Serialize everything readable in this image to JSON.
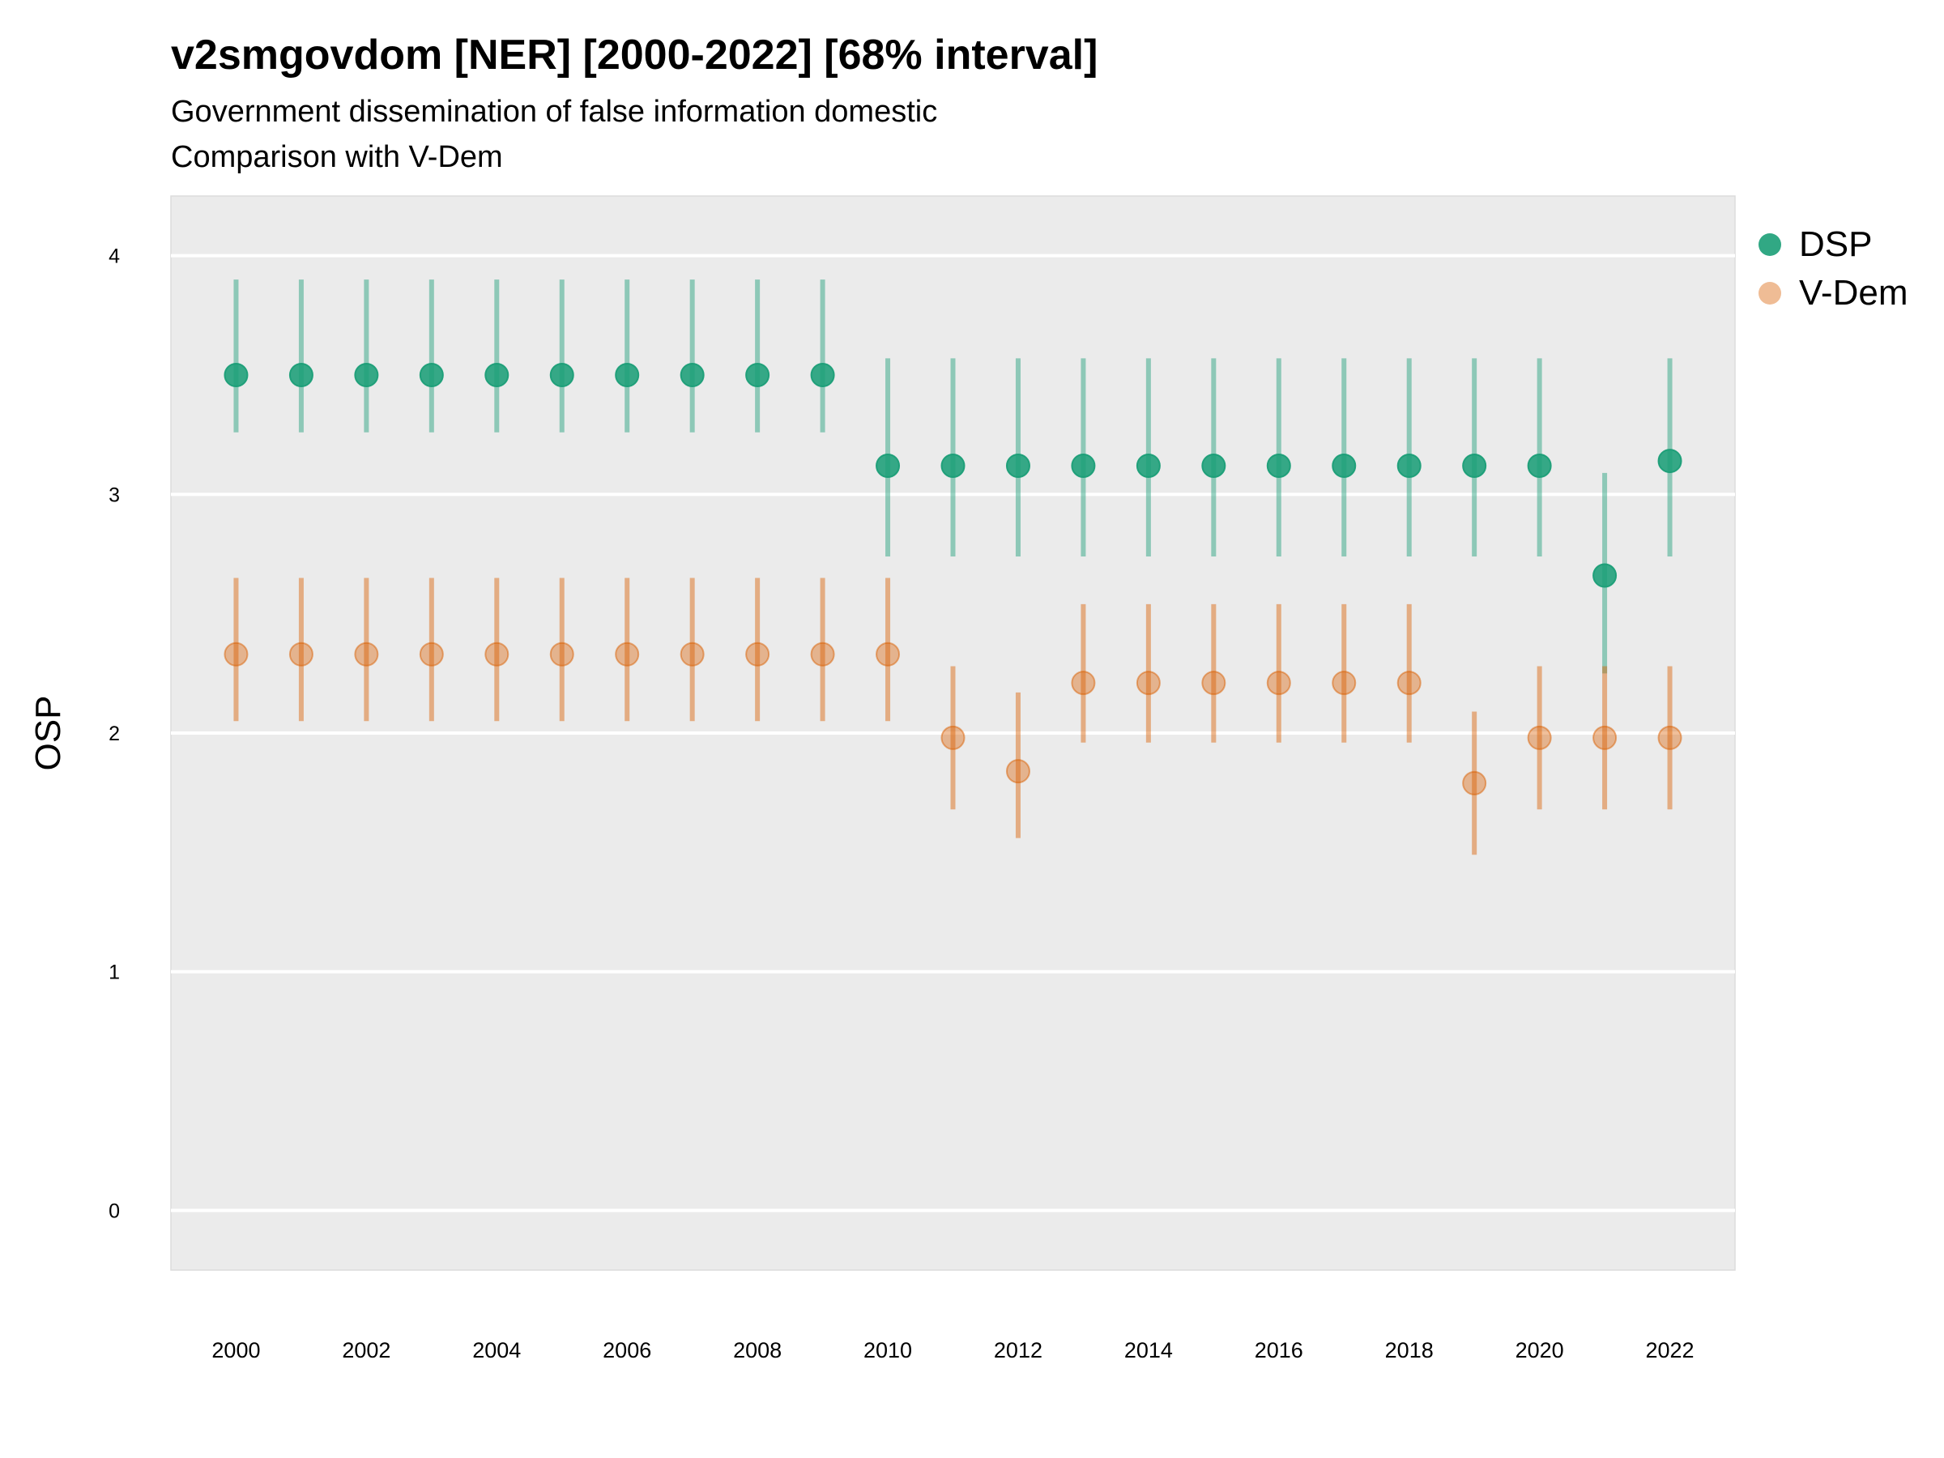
{
  "chart_data": {
    "type": "scatter",
    "title": "v2smgovdom [NER] [2000-2022] [68% interval]",
    "subtitle": "Government dissemination of false information domestic",
    "subtitle2": "Comparison with V-Dem",
    "xlabel": "",
    "ylabel": "OSP",
    "ylim": [
      -0.25,
      4.25
    ],
    "yticks": [
      0,
      1,
      2,
      3,
      4
    ],
    "xlim": [
      1999,
      2023
    ],
    "xticks": [
      2000,
      2002,
      2004,
      2006,
      2008,
      2010,
      2012,
      2014,
      2016,
      2018,
      2020,
      2022
    ],
    "grid": true,
    "legend_position": "right",
    "series": [
      {
        "name": "DSP",
        "color": "#1b9e77",
        "points": [
          {
            "x": 2000,
            "y": 3.5,
            "lo": 3.26,
            "hi": 3.9
          },
          {
            "x": 2001,
            "y": 3.5,
            "lo": 3.26,
            "hi": 3.9
          },
          {
            "x": 2002,
            "y": 3.5,
            "lo": 3.26,
            "hi": 3.9
          },
          {
            "x": 2003,
            "y": 3.5,
            "lo": 3.26,
            "hi": 3.9
          },
          {
            "x": 2004,
            "y": 3.5,
            "lo": 3.26,
            "hi": 3.9
          },
          {
            "x": 2005,
            "y": 3.5,
            "lo": 3.26,
            "hi": 3.9
          },
          {
            "x": 2006,
            "y": 3.5,
            "lo": 3.26,
            "hi": 3.9
          },
          {
            "x": 2007,
            "y": 3.5,
            "lo": 3.26,
            "hi": 3.9
          },
          {
            "x": 2008,
            "y": 3.5,
            "lo": 3.26,
            "hi": 3.9
          },
          {
            "x": 2009,
            "y": 3.5,
            "lo": 3.26,
            "hi": 3.9
          },
          {
            "x": 2010,
            "y": 3.12,
            "lo": 2.74,
            "hi": 3.57
          },
          {
            "x": 2011,
            "y": 3.12,
            "lo": 2.74,
            "hi": 3.57
          },
          {
            "x": 2012,
            "y": 3.12,
            "lo": 2.74,
            "hi": 3.57
          },
          {
            "x": 2013,
            "y": 3.12,
            "lo": 2.74,
            "hi": 3.57
          },
          {
            "x": 2014,
            "y": 3.12,
            "lo": 2.74,
            "hi": 3.57
          },
          {
            "x": 2015,
            "y": 3.12,
            "lo": 2.74,
            "hi": 3.57
          },
          {
            "x": 2016,
            "y": 3.12,
            "lo": 2.74,
            "hi": 3.57
          },
          {
            "x": 2017,
            "y": 3.12,
            "lo": 2.74,
            "hi": 3.57
          },
          {
            "x": 2018,
            "y": 3.12,
            "lo": 2.74,
            "hi": 3.57
          },
          {
            "x": 2019,
            "y": 3.12,
            "lo": 2.74,
            "hi": 3.57
          },
          {
            "x": 2020,
            "y": 3.12,
            "lo": 2.74,
            "hi": 3.57
          },
          {
            "x": 2021,
            "y": 2.66,
            "lo": 2.25,
            "hi": 3.09
          },
          {
            "x": 2022,
            "y": 3.14,
            "lo": 2.74,
            "hi": 3.57
          }
        ]
      },
      {
        "name": "V-Dem",
        "color": "#d95f02",
        "points": [
          {
            "x": 2000,
            "y": 2.33,
            "lo": 2.05,
            "hi": 2.65
          },
          {
            "x": 2001,
            "y": 2.33,
            "lo": 2.05,
            "hi": 2.65
          },
          {
            "x": 2002,
            "y": 2.33,
            "lo": 2.05,
            "hi": 2.65
          },
          {
            "x": 2003,
            "y": 2.33,
            "lo": 2.05,
            "hi": 2.65
          },
          {
            "x": 2004,
            "y": 2.33,
            "lo": 2.05,
            "hi": 2.65
          },
          {
            "x": 2005,
            "y": 2.33,
            "lo": 2.05,
            "hi": 2.65
          },
          {
            "x": 2006,
            "y": 2.33,
            "lo": 2.05,
            "hi": 2.65
          },
          {
            "x": 2007,
            "y": 2.33,
            "lo": 2.05,
            "hi": 2.65
          },
          {
            "x": 2008,
            "y": 2.33,
            "lo": 2.05,
            "hi": 2.65
          },
          {
            "x": 2009,
            "y": 2.33,
            "lo": 2.05,
            "hi": 2.65
          },
          {
            "x": 2010,
            "y": 2.33,
            "lo": 2.05,
            "hi": 2.65
          },
          {
            "x": 2011,
            "y": 1.98,
            "lo": 1.68,
            "hi": 2.28
          },
          {
            "x": 2012,
            "y": 1.84,
            "lo": 1.56,
            "hi": 2.17
          },
          {
            "x": 2013,
            "y": 2.21,
            "lo": 1.96,
            "hi": 2.54
          },
          {
            "x": 2014,
            "y": 2.21,
            "lo": 1.96,
            "hi": 2.54
          },
          {
            "x": 2015,
            "y": 2.21,
            "lo": 1.96,
            "hi": 2.54
          },
          {
            "x": 2016,
            "y": 2.21,
            "lo": 1.96,
            "hi": 2.54
          },
          {
            "x": 2017,
            "y": 2.21,
            "lo": 1.96,
            "hi": 2.54
          },
          {
            "x": 2018,
            "y": 2.21,
            "lo": 1.96,
            "hi": 2.54
          },
          {
            "x": 2019,
            "y": 1.79,
            "lo": 1.49,
            "hi": 2.09
          },
          {
            "x": 2020,
            "y": 1.98,
            "lo": 1.68,
            "hi": 2.28
          },
          {
            "x": 2021,
            "y": 1.98,
            "lo": 1.68,
            "hi": 2.28
          },
          {
            "x": 2022,
            "y": 1.98,
            "lo": 1.68,
            "hi": 2.28
          }
        ]
      }
    ]
  }
}
